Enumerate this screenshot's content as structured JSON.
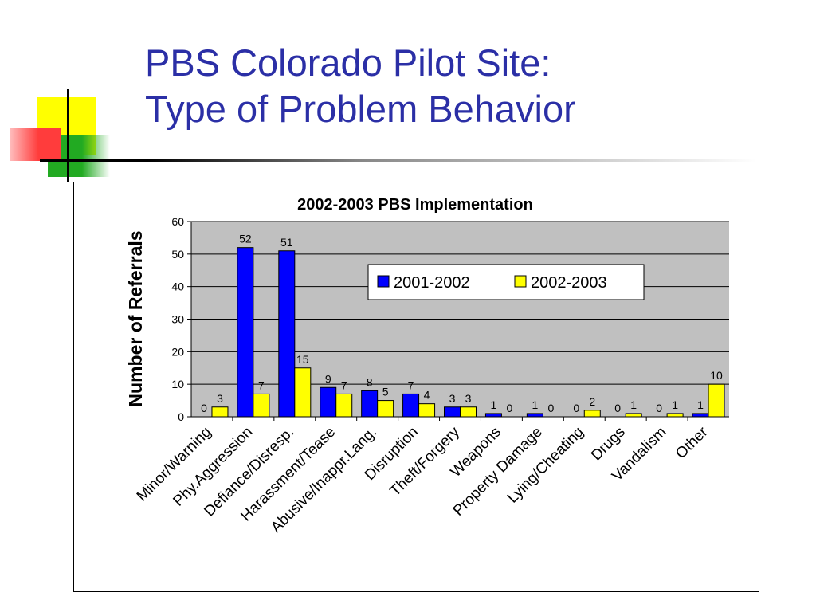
{
  "slide": {
    "title_line1": "PBS Colorado Pilot Site:",
    "title_line2": "Type of Problem Behavior"
  },
  "colors": {
    "title": "#2b2fa6",
    "series_2001": "#0000ff",
    "series_2002": "#ffff00",
    "plot_bg": "#c0c0c0",
    "deco_yellow": "#ffff00",
    "deco_red": "#ff3c3c",
    "deco_green": "#22aa22"
  },
  "chart_data": {
    "type": "bar",
    "title": "2002-2003 PBS Implementation",
    "xlabel": "",
    "ylabel": "Number of Referrals",
    "ylim": [
      0,
      60
    ],
    "yticks": [
      0,
      10,
      20,
      30,
      40,
      50,
      60
    ],
    "grid": true,
    "legend_position": "top-right",
    "categories": [
      "Minor/Warning",
      "Phy.Aggression",
      "Defiance/Disresp.",
      "Harassment/Tease",
      "Abusive/Inappr.Lang.",
      "Disruption",
      "Theft/Forgery",
      "Weapons",
      "Property Damage",
      "Lying/Cheating",
      "Drugs",
      "Vandalism",
      "Other"
    ],
    "series": [
      {
        "name": "2001-2002",
        "color": "#0000ff",
        "values": [
          0,
          52,
          51,
          9,
          8,
          7,
          3,
          1,
          1,
          0,
          0,
          0,
          1
        ]
      },
      {
        "name": "2002-2003",
        "color": "#ffff00",
        "values": [
          3,
          7,
          15,
          7,
          5,
          4,
          3,
          0,
          0,
          2,
          1,
          1,
          10
        ]
      }
    ]
  }
}
